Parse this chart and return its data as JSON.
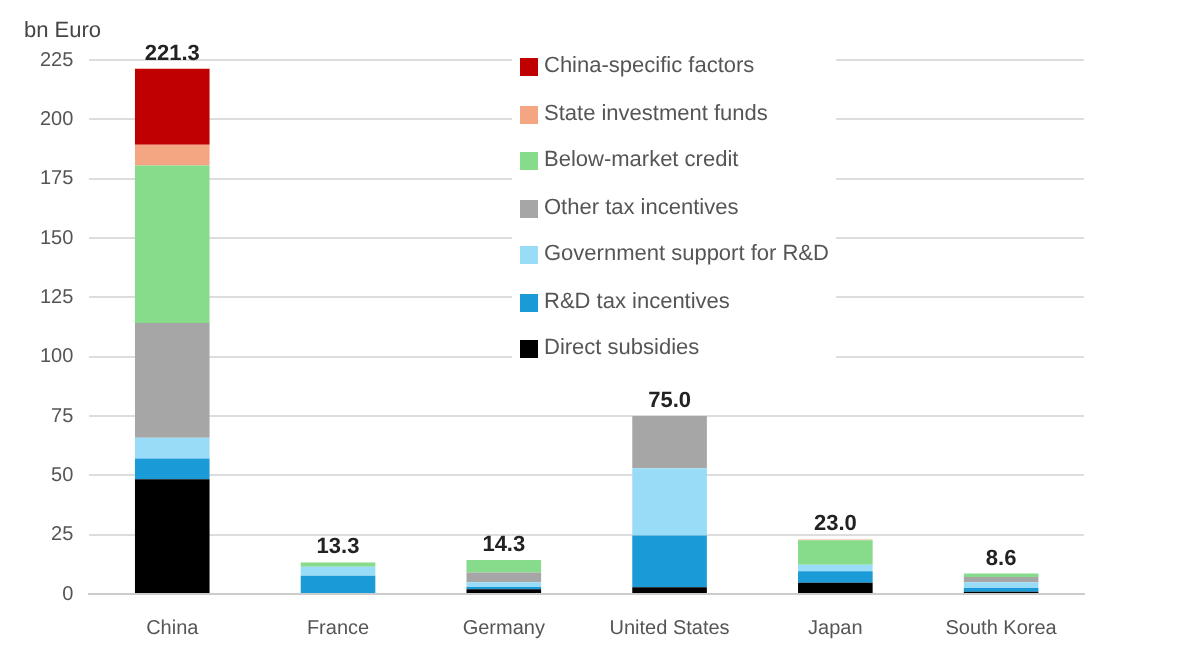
{
  "chart_data": {
    "type": "bar",
    "stacked": true,
    "ylabel": "bn Euro",
    "categories": [
      "China",
      "France",
      "Germany",
      "United States",
      "Japan",
      "South Korea"
    ],
    "series": [
      {
        "name": "Direct subsidies",
        "color": "#000000",
        "values": [
          48.3,
          0,
          2.0,
          2.8,
          4.7,
          1.0
        ]
      },
      {
        "name": "R&D tax incentives",
        "color": "#1a9ad6",
        "values": [
          8.8,
          7.7,
          1.0,
          21.9,
          4.9,
          1.5
        ]
      },
      {
        "name": "Government support for R&D",
        "color": "#99dcf7",
        "values": [
          8.7,
          3.8,
          2.0,
          28.3,
          2.7,
          2.4
        ]
      },
      {
        "name": "Other tax incentives",
        "color": "#a6a6a6",
        "values": [
          48.4,
          0,
          4.1,
          22.0,
          0,
          2.3
        ]
      },
      {
        "name": "Below-market credit",
        "color": "#86dc8a",
        "values": [
          66.4,
          1.8,
          5.2,
          0,
          10.4,
          1.4
        ]
      },
      {
        "name": "State investment funds",
        "color": "#f4a582",
        "values": [
          8.7,
          0,
          0,
          0,
          0.3,
          null
        ]
      },
      {
        "name": "China-specific factors",
        "color": "#c00000",
        "values": [
          32.0,
          0,
          0,
          0,
          0,
          0
        ]
      }
    ],
    "totals": [
      "221.3",
      "13.3",
      "14.3",
      "75.0",
      "23.0",
      "8.6"
    ],
    "ylim": [
      0,
      225
    ],
    "yticks": [
      0,
      25,
      50,
      75,
      100,
      125,
      150,
      175,
      200,
      225
    ],
    "grid": "y",
    "legend": "top"
  }
}
